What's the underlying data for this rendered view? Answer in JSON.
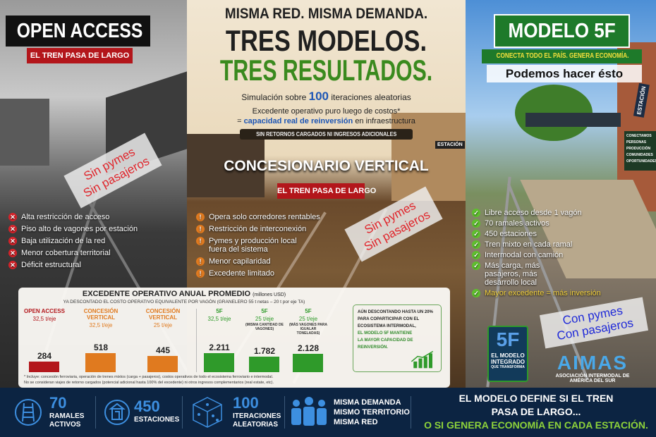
{
  "left": {
    "title": "OPEN ACCESS",
    "tag": "EL TREN PASA DE LARGO",
    "sticky": [
      "Sin pymes",
      "Sin pasajeros"
    ],
    "items": [
      "Alta restricción de acceso",
      "Piso alto de vagones por estación",
      "Baja utilización de la red",
      "Menor cobertura territorial",
      "Déficit estructural"
    ]
  },
  "header": {
    "line1": "MISMA RED. MISMA DEMANDA.",
    "line2": "TRES MODELOS.",
    "line3": "TRES RESULTADOS.",
    "sim_pre": "Simulación sobre",
    "sim_num": "100",
    "sim_post": "iteraciones aleatorias",
    "exc": "Excedente operativo puro luego de costos*",
    "cap_pre": "=",
    "cap_hl": "capacidad real de reinversión",
    "cap_post": "en infraestructura",
    "pill": "SIN RETORNOS CARGADOS NI INGRESOS ADICIONALES"
  },
  "middle": {
    "title": "CONCESIONARIO VERTICAL",
    "tag": "EL TREN PASA DE LARGO",
    "sticky": [
      "Sin pymes",
      "Sin pasajeros"
    ],
    "sign": "ESTACIÓN",
    "items": [
      "Opera solo corredores rentables",
      "Restricción de interconexión",
      "Pymes y producción local fuera del sistema",
      "Menor capilaridad",
      "Excedente limitado"
    ]
  },
  "right": {
    "title": "MODELO 5F",
    "strip": "CONECTA TODO EL PAÍS. GENERA ECONOMÍA.",
    "slogan": "Podemos hacer ésto",
    "sign": "ESTACIÓN",
    "board": [
      "CONECTAMOS",
      "PERSONAS",
      "PRODUCCIÓN",
      "COMUNIDADES",
      "OPORTUNIDADES"
    ],
    "items": [
      "Libre acceso desde 1 vagón",
      "70 ramales activos",
      "450 estaciones",
      "Tren mixto en cada ramal",
      "Intermodal con camión",
      "Más carga, más pasajeros, más desarrollo local",
      "Mayor excedente = más inversión"
    ],
    "sticky": [
      "Con pymes",
      "Con pasajeros"
    ],
    "logo5f": {
      "mark": "5F",
      "line1": "EL MODELO",
      "line2": "INTEGRADO",
      "line3": "QUE TRANSFORMA"
    },
    "aimas": {
      "mark": "AIMAS",
      "line1": "ASOCIACIÓN INTERMODAL DE",
      "line2": "AMÉRICA DEL SUR"
    }
  },
  "chart_data": {
    "type": "bar",
    "title": "EXCEDENTE OPERATIVO ANUAL PROMEDIO",
    "unit": "(millones USD)",
    "subtitle": "YA DESCONTADO EL COSTO OPERATIVO EQUIVALENTE POR VAGÓN (GRANELERO 55 t netas – 20 t por eje TA)",
    "categories": [
      {
        "name": "OPEN ACCESS",
        "sub": "32,5 t/eje",
        "note": "",
        "color": "#b3161b"
      },
      {
        "name": "CONCESIÓN VERTICAL",
        "sub": "32,5 t/eje",
        "note": "",
        "color": "#e07a1f"
      },
      {
        "name": "CONCESIÓN VERTICAL",
        "sub": "25 t/eje",
        "note": "",
        "color": "#e07a1f"
      },
      {
        "name": "5F",
        "sub": "32,5 t/eje",
        "note": "",
        "color": "#2f9a2a"
      },
      {
        "name": "5F",
        "sub": "25 t/eje",
        "note": "(MISMA CANTIDAD DE VAGONES)",
        "color": "#2f9a2a"
      },
      {
        "name": "5F",
        "sub": "25 t/eje",
        "note": "(MÁS VAGONES PARA IGUALAR TONELADAS)",
        "color": "#2f9a2a"
      }
    ],
    "values": [
      284,
      518,
      445,
      2211,
      1782,
      2128
    ],
    "value_labels": [
      "284",
      "518",
      "445",
      "2.211",
      "1.782",
      "2.128"
    ],
    "footnote1": "* Incluye: concesión ferroviaria, operación de trenes mixtos (carga + pasajeros), costos operativos de todo el ecosistema ferroviario e intermodal.",
    "footnote2": "No se consideran viajes de retorno cargados (potencial adicional hasta 100% del excedente) ni otros ingresos complementarios (real estate, etc).",
    "callout": [
      "AÚN DESCONTANDO HASTA UN 20%",
      "PARA COPARTICIPAR CON EL",
      "ECOSISTEMA INTERMODAL,"
    ],
    "callout_hl": [
      "EL MODELO 5F MANTIENE",
      "LA MAYOR CAPACIDAD DE",
      "REINVERSIÓN."
    ]
  },
  "bottom": {
    "stats": [
      {
        "num": "70",
        "label": [
          "RAMALES",
          "ACTIVOS"
        ],
        "icon": "rail-track-icon"
      },
      {
        "num": "450",
        "label": [
          "ESTACIONES"
        ],
        "icon": "station-icon"
      },
      {
        "num": "100",
        "label": [
          "ITERACIONES",
          "ALEATORIAS"
        ],
        "icon": "dice-icon"
      }
    ],
    "same": [
      "MISMA DEMANDA",
      "MISMO TERRITORIO",
      "MISMA RED"
    ],
    "msg1": "EL MODELO DEFINE SI EL TREN",
    "msg2": "PASA DE LARGO...",
    "msg3": "O SI GENERA ECONOMÍA EN CADA ESTACIÓN.",
    "colors": {
      "accent": "#3d8fe0",
      "green": "#8ed33a"
    }
  }
}
